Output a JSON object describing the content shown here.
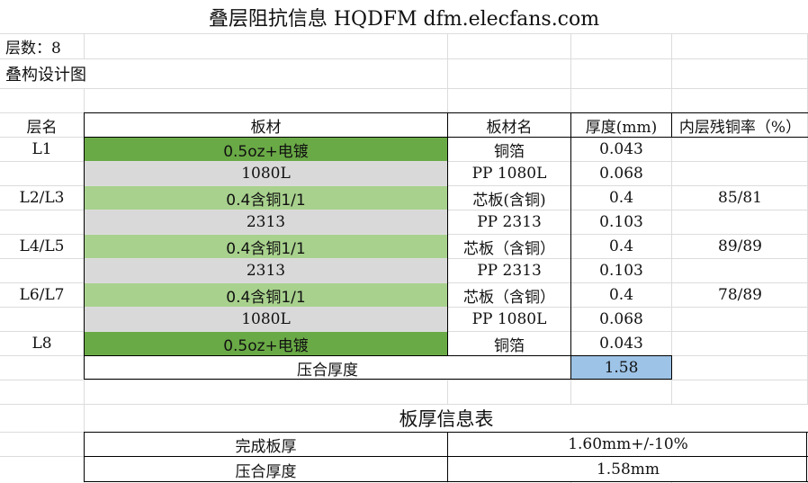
{
  "title": "叠层阻抗信息 HQDFM dfm.elecfans.com",
  "layer_count": "层数：8",
  "section_label": "叠构设计图",
  "headers": [
    "层名",
    "板材",
    "板材名",
    "厚度(mm)",
    "内层残铜率（%）"
  ],
  "rows": [
    {
      "layer": "L1",
      "material": "0.5oz+电镀",
      "material_name": "铜箔",
      "thickness": "0.043",
      "residual": ""
    },
    {
      "layer": "",
      "material": "1080L",
      "material_name": "PP 1080L",
      "thickness": "0.068",
      "residual": ""
    },
    {
      "layer": "L2/L3",
      "material": "0.4含铜1/1",
      "material_name": "芯板(含铜)",
      "thickness": "0.4",
      "residual": "85/81"
    },
    {
      "layer": "",
      "material": "2313",
      "material_name": "PP 2313",
      "thickness": "0.103",
      "residual": ""
    },
    {
      "layer": "L4/L5",
      "material": "0.4含铜1/1",
      "material_name": "芯板（含铜）",
      "thickness": "0.4",
      "residual": "89/89"
    },
    {
      "layer": "",
      "material": "2313",
      "material_name": "PP 2313",
      "thickness": "0.103",
      "residual": ""
    },
    {
      "layer": "L6/L7",
      "material": "0.4含铜1/1",
      "material_name": "芯板（含铜）",
      "thickness": "0.4",
      "residual": "78/89"
    },
    {
      "layer": "",
      "material": "1080L",
      "material_name": "PP 1080L",
      "thickness": "0.068",
      "residual": ""
    },
    {
      "layer": "L8",
      "material": "0.5oz+电镀",
      "material_name": "铜箔",
      "thickness": "0.043",
      "residual": ""
    }
  ],
  "pressed_label": "压合厚度",
  "pressed_value": "1.58",
  "info_title": "板厚信息表",
  "info_rows": [
    {
      "label": "完成板厚",
      "value": "1.60mm+/-10%"
    },
    {
      "label": "压合厚度",
      "value": "1.58mm"
    }
  ],
  "colors": {
    "copper_foil": "#6aaa46",
    "core": "#a8d18d",
    "prepreg": "#d9d9d9",
    "pressed_total": "#9dc3e6"
  }
}
